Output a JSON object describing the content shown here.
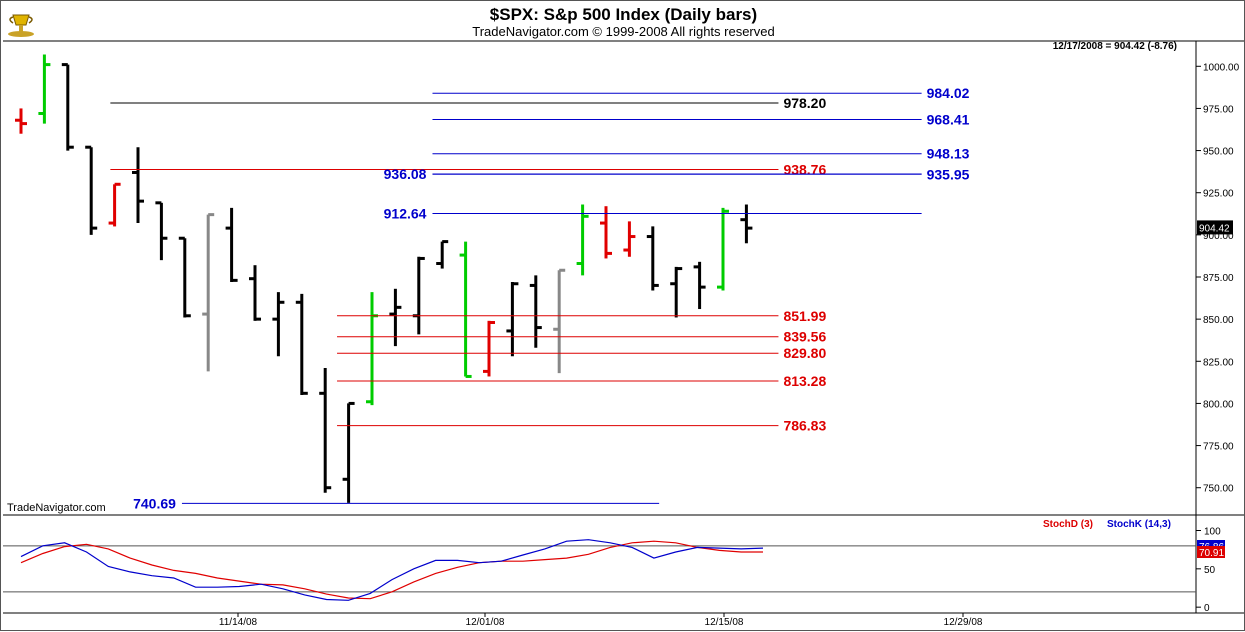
{
  "header": {
    "title": "$SPX:  S&p 500 Index  (Daily bars)",
    "copyright": "TradeNavigator.com © 1999-2008 All rights reserved",
    "quote": "12/17/2008 = 904.42 (-8.76)",
    "watermark": "TradeNavigator.com",
    "logo_icon": "trophy-logo-icon"
  },
  "colors": {
    "up_bar": "#00cc00",
    "down_bar": "#000000",
    "red_bar": "#e00000",
    "gray_bar": "#888888",
    "fib_blue": "#0000cc",
    "fib_red": "#dd0000",
    "stoch_d": "#dd0000",
    "stoch_k": "#0000cc"
  },
  "chart_data": [
    {
      "type": "ohlc",
      "title": "$SPX:  S&p 500 Index  (Daily bars)",
      "ylim": [
        735,
        1015
      ],
      "y_ticks": [
        "1000.00",
        "975.00",
        "950.00",
        "925.00",
        "900.00",
        "875.00",
        "850.00",
        "825.00",
        "800.00",
        "775.00",
        "750.00"
      ],
      "y_tick_values": [
        1000,
        975,
        950,
        925,
        900,
        875,
        850,
        825,
        800,
        775,
        750
      ],
      "x_ticks": [
        "11/14/08",
        "12/01/08",
        "12/15/08",
        "12/29/08"
      ],
      "last_price_label": "904.42",
      "bars": [
        {
          "o": 968,
          "h": 975,
          "l": 960,
          "c": 966,
          "col": "red"
        },
        {
          "o": 972,
          "h": 1007,
          "l": 966,
          "c": 1001,
          "col": "green"
        },
        {
          "o": 1001,
          "h": 1001,
          "l": 950,
          "c": 952,
          "col": "black"
        },
        {
          "o": 952,
          "h": 952,
          "l": 900,
          "c": 904,
          "col": "black"
        },
        {
          "o": 907,
          "h": 930,
          "l": 905,
          "c": 930,
          "col": "red"
        },
        {
          "o": 937,
          "h": 952,
          "l": 907,
          "c": 920,
          "col": "black"
        },
        {
          "o": 919,
          "h": 919,
          "l": 885,
          "c": 898,
          "col": "black"
        },
        {
          "o": 898,
          "h": 898,
          "l": 851,
          "c": 852,
          "col": "black"
        },
        {
          "o": 853,
          "h": 912,
          "l": 819,
          "c": 912,
          "col": "gray"
        },
        {
          "o": 904,
          "h": 916,
          "l": 872,
          "c": 873,
          "col": "black"
        },
        {
          "o": 874,
          "h": 882,
          "l": 849,
          "c": 850,
          "col": "black"
        },
        {
          "o": 850,
          "h": 866,
          "l": 828,
          "c": 860,
          "col": "black"
        },
        {
          "o": 860,
          "h": 865,
          "l": 805,
          "c": 806,
          "col": "black"
        },
        {
          "o": 806,
          "h": 821,
          "l": 747,
          "c": 750,
          "col": "black"
        },
        {
          "o": 755,
          "h": 800,
          "l": 741,
          "c": 800,
          "col": "black"
        },
        {
          "o": 801,
          "h": 866,
          "l": 799,
          "c": 852,
          "col": "green"
        },
        {
          "o": 853,
          "h": 868,
          "l": 834,
          "c": 857,
          "col": "black"
        },
        {
          "o": 852,
          "h": 887,
          "l": 841,
          "c": 886,
          "col": "black"
        },
        {
          "o": 883,
          "h": 896,
          "l": 880,
          "c": 896,
          "col": "black"
        },
        {
          "o": 888,
          "h": 896,
          "l": 816,
          "c": 816,
          "col": "green"
        },
        {
          "o": 819,
          "h": 849,
          "l": 816,
          "c": 848,
          "col": "red"
        },
        {
          "o": 843,
          "h": 872,
          "l": 828,
          "c": 871,
          "col": "black"
        },
        {
          "o": 870,
          "h": 876,
          "l": 833,
          "c": 845,
          "col": "black"
        },
        {
          "o": 844,
          "h": 879,
          "l": 818,
          "c": 879,
          "col": "gray"
        },
        {
          "o": 883,
          "h": 918,
          "l": 876,
          "c": 911,
          "col": "green"
        },
        {
          "o": 907,
          "h": 917,
          "l": 886,
          "c": 889,
          "col": "red"
        },
        {
          "o": 891,
          "h": 908,
          "l": 887,
          "c": 899,
          "col": "red"
        },
        {
          "o": 899,
          "h": 905,
          "l": 867,
          "c": 870,
          "col": "black"
        },
        {
          "o": 871,
          "h": 881,
          "l": 851,
          "c": 880,
          "col": "black"
        },
        {
          "o": 881,
          "h": 884,
          "l": 856,
          "c": 869,
          "col": "black"
        },
        {
          "o": 869,
          "h": 916,
          "l": 867,
          "c": 914,
          "col": "green"
        },
        {
          "o": 909,
          "h": 918,
          "l": 895,
          "c": 904,
          "col": "black"
        }
      ],
      "levels": [
        {
          "label": "984.02",
          "value": 984.02,
          "color": "blue",
          "x0": 0.36,
          "x1": 0.77,
          "label_side": "right"
        },
        {
          "label": "978.20",
          "value": 978.2,
          "color": "black",
          "x0": 0.09,
          "x1": 0.65,
          "label_side": "right"
        },
        {
          "label": "968.41",
          "value": 968.41,
          "color": "blue",
          "x0": 0.36,
          "x1": 0.77,
          "label_side": "right"
        },
        {
          "label": "948.13",
          "value": 948.13,
          "color": "blue",
          "x0": 0.36,
          "x1": 0.77,
          "label_side": "right"
        },
        {
          "label": "938.76",
          "value": 938.76,
          "color": "red",
          "x0": 0.09,
          "x1": 0.65,
          "label_side": "right"
        },
        {
          "label": "935.95",
          "value": 935.95,
          "color": "blue",
          "x0": 0.36,
          "x1": 0.77,
          "label_side": "right"
        },
        {
          "label": "936.08",
          "value": 936.08,
          "color": "blue",
          "x0": 0.36,
          "x1": 0.77,
          "label_side": "left"
        },
        {
          "label": "912.64",
          "value": 912.64,
          "color": "blue",
          "x0": 0.36,
          "x1": 0.77,
          "label_side": "left"
        },
        {
          "label": "851.99",
          "value": 851.99,
          "color": "red",
          "x0": 0.28,
          "x1": 0.65,
          "label_side": "right"
        },
        {
          "label": "839.56",
          "value": 839.56,
          "color": "red",
          "x0": 0.28,
          "x1": 0.65,
          "label_side": "right"
        },
        {
          "label": "829.80",
          "value": 829.8,
          "color": "red",
          "x0": 0.28,
          "x1": 0.65,
          "label_side": "right"
        },
        {
          "label": "813.28",
          "value": 813.28,
          "color": "red",
          "x0": 0.28,
          "x1": 0.65,
          "label_side": "right"
        },
        {
          "label": "786.83",
          "value": 786.83,
          "color": "red",
          "x0": 0.28,
          "x1": 0.65,
          "label_side": "right"
        },
        {
          "label": "740.69",
          "value": 740.69,
          "color": "blue",
          "x0": 0.15,
          "x1": 0.55,
          "label_side": "left"
        }
      ]
    },
    {
      "type": "line",
      "title": "",
      "ylim": [
        -5,
        115
      ],
      "y_ticks": [
        "100",
        "50",
        "0"
      ],
      "y_tick_values": [
        100,
        50,
        0
      ],
      "ref_lines": [
        80,
        20
      ],
      "last_value_labels": [
        "76.86",
        "70.91"
      ],
      "series": [
        {
          "name": "StochD (3)",
          "color": "red",
          "values": [
            58,
            70,
            79,
            82,
            76,
            64,
            55,
            48,
            44,
            38,
            34,
            30,
            29,
            24,
            17,
            12,
            11,
            20,
            33,
            44,
            52,
            58,
            60,
            60,
            62,
            64,
            69,
            78,
            84,
            86,
            84,
            78,
            74,
            72,
            72
          ]
        },
        {
          "name": "StochK (14,3)",
          "color": "blue",
          "values": [
            66,
            80,
            84,
            72,
            53,
            46,
            41,
            38,
            26,
            26,
            27,
            30,
            24,
            16,
            10,
            9,
            18,
            36,
            50,
            61,
            61,
            58,
            60,
            68,
            76,
            86,
            88,
            84,
            78,
            64,
            72,
            78,
            77,
            76,
            77
          ]
        }
      ]
    }
  ]
}
